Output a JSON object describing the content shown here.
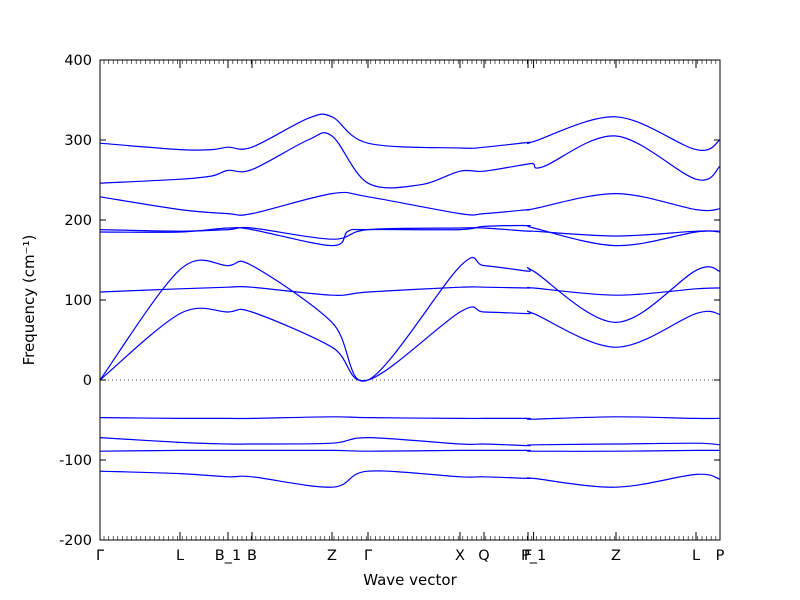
{
  "chart_data": {
    "type": "line",
    "title": "",
    "xlabel": "Wave vector",
    "ylabel": "Frequency (cm⁻¹)",
    "ylim": [
      -200,
      400
    ],
    "yticks": [
      -200,
      -100,
      0,
      100,
      200,
      300,
      400
    ],
    "line_color": "#0000ff",
    "zero_line": true,
    "x_ticks": [
      {
        "label": "Γ",
        "pos": 0.0
      },
      {
        "label": "L",
        "pos": 1.0
      },
      {
        "label": "B_1",
        "pos": 1.6
      },
      {
        "label": "B",
        "pos": 1.9
      },
      {
        "label": "Z",
        "pos": 2.9
      },
      {
        "label": "Γ",
        "pos": 3.35
      },
      {
        "label": "X",
        "pos": 4.5
      },
      {
        "label": "Q",
        "pos": 4.8
      },
      {
        "label": "F",
        "pos": 5.35
      },
      {
        "label": "P_1",
        "pos": 5.42
      },
      {
        "label": "Z",
        "pos": 6.45
      },
      {
        "label": "L",
        "pos": 7.45
      },
      {
        "label": "P",
        "pos": 7.75
      }
    ],
    "series": [
      {
        "points": [
          [
            0.0,
            296
          ],
          [
            1.0,
            288
          ],
          [
            1.4,
            288
          ],
          [
            1.6,
            291
          ],
          [
            1.9,
            291
          ],
          [
            2.6,
            327
          ],
          [
            2.9,
            329
          ],
          [
            3.35,
            296
          ],
          [
            4.5,
            290
          ],
          [
            4.8,
            291
          ],
          [
            5.35,
            297
          ],
          [
            5.42,
            298
          ],
          [
            6.45,
            329
          ],
          [
            7.45,
            288
          ],
          [
            7.75,
            300
          ]
        ]
      },
      {
        "points": [
          [
            0.0,
            246
          ],
          [
            1.0,
            251
          ],
          [
            1.4,
            255
          ],
          [
            1.6,
            262
          ],
          [
            1.9,
            263
          ],
          [
            2.6,
            300
          ],
          [
            2.9,
            305
          ],
          [
            3.35,
            246
          ],
          [
            4.0,
            244
          ],
          [
            4.5,
            261
          ],
          [
            4.8,
            261
          ],
          [
            5.35,
            270
          ],
          [
            5.42,
            270
          ],
          [
            5.55,
            267
          ],
          [
            6.45,
            305
          ],
          [
            7.45,
            251
          ],
          [
            7.75,
            267
          ]
        ]
      },
      {
        "points": [
          [
            0.0,
            229
          ],
          [
            1.0,
            213
          ],
          [
            1.6,
            208
          ],
          [
            1.9,
            208
          ],
          [
            2.9,
            233
          ],
          [
            3.35,
            229
          ],
          [
            4.5,
            208
          ],
          [
            4.8,
            208
          ],
          [
            5.35,
            213
          ],
          [
            5.42,
            214
          ],
          [
            6.45,
            233
          ],
          [
            7.45,
            213
          ],
          [
            7.75,
            214
          ]
        ]
      },
      {
        "points": [
          [
            0.0,
            188
          ],
          [
            1.0,
            186
          ],
          [
            1.6,
            188
          ],
          [
            1.9,
            190
          ],
          [
            2.9,
            176
          ],
          [
            3.35,
            188
          ],
          [
            4.5,
            190
          ],
          [
            4.8,
            190
          ],
          [
            5.35,
            186
          ],
          [
            5.42,
            186
          ],
          [
            6.45,
            180
          ],
          [
            7.45,
            186
          ],
          [
            7.75,
            186
          ]
        ]
      },
      {
        "points": [
          [
            0.0,
            185
          ],
          [
            1.0,
            185
          ],
          [
            1.6,
            190
          ],
          [
            1.9,
            188
          ],
          [
            2.9,
            168
          ],
          [
            3.1,
            186
          ],
          [
            3.35,
            188
          ],
          [
            4.5,
            188
          ],
          [
            4.8,
            192
          ],
          [
            5.35,
            193
          ],
          [
            5.42,
            190
          ],
          [
            6.45,
            168
          ],
          [
            7.45,
            185
          ],
          [
            7.75,
            185
          ]
        ]
      },
      {
        "points": [
          [
            0.0,
            110
          ],
          [
            1.0,
            114
          ],
          [
            1.6,
            116
          ],
          [
            1.9,
            116
          ],
          [
            2.9,
            106
          ],
          [
            3.35,
            110
          ],
          [
            4.5,
            116
          ],
          [
            4.8,
            116
          ],
          [
            5.35,
            115
          ],
          [
            5.42,
            115
          ],
          [
            6.45,
            106
          ],
          [
            7.45,
            114
          ],
          [
            7.75,
            115
          ]
        ]
      },
      {
        "points": [
          [
            0.0,
            0
          ],
          [
            1.0,
            138
          ],
          [
            1.6,
            143
          ],
          [
            1.9,
            143
          ],
          [
            2.9,
            72
          ],
          [
            3.35,
            0
          ],
          [
            4.5,
            142
          ],
          [
            4.8,
            143
          ],
          [
            5.35,
            136
          ],
          [
            5.42,
            136
          ],
          [
            6.45,
            72
          ],
          [
            7.45,
            137
          ],
          [
            7.75,
            136
          ]
        ]
      },
      {
        "points": [
          [
            0.0,
            0
          ],
          [
            1.0,
            83
          ],
          [
            1.6,
            85
          ],
          [
            1.9,
            85
          ],
          [
            2.9,
            41
          ],
          [
            3.35,
            0
          ],
          [
            4.5,
            85
          ],
          [
            4.8,
            85
          ],
          [
            5.35,
            83
          ],
          [
            5.42,
            83
          ],
          [
            6.45,
            41
          ],
          [
            7.45,
            83
          ],
          [
            7.75,
            82
          ]
        ]
      },
      {
        "points": [
          [
            0.0,
            -47
          ],
          [
            1.0,
            -48
          ],
          [
            1.6,
            -48
          ],
          [
            1.9,
            -48
          ],
          [
            2.9,
            -46
          ],
          [
            3.35,
            -47
          ],
          [
            4.5,
            -48
          ],
          [
            4.8,
            -48
          ],
          [
            5.35,
            -48
          ],
          [
            5.42,
            -49
          ],
          [
            6.45,
            -46
          ],
          [
            7.45,
            -48
          ],
          [
            7.75,
            -48
          ]
        ]
      },
      {
        "points": [
          [
            0.0,
            -72
          ],
          [
            1.0,
            -78
          ],
          [
            1.6,
            -80
          ],
          [
            1.9,
            -80
          ],
          [
            2.9,
            -79
          ],
          [
            3.35,
            -72
          ],
          [
            4.5,
            -80
          ],
          [
            4.8,
            -80
          ],
          [
            5.35,
            -82
          ],
          [
            5.42,
            -81
          ],
          [
            6.45,
            -80
          ],
          [
            7.45,
            -79
          ],
          [
            7.75,
            -81
          ]
        ]
      },
      {
        "points": [
          [
            0.0,
            -89
          ],
          [
            1.0,
            -88
          ],
          [
            1.6,
            -88
          ],
          [
            1.9,
            -88
          ],
          [
            2.9,
            -88
          ],
          [
            3.35,
            -89
          ],
          [
            4.5,
            -88
          ],
          [
            4.8,
            -88
          ],
          [
            5.35,
            -88
          ],
          [
            5.42,
            -89
          ],
          [
            6.45,
            -89
          ],
          [
            7.45,
            -88
          ],
          [
            7.75,
            -88
          ]
        ]
      },
      {
        "points": [
          [
            0.0,
            -114
          ],
          [
            1.0,
            -117
          ],
          [
            1.6,
            -121
          ],
          [
            1.9,
            -121
          ],
          [
            2.9,
            -134
          ],
          [
            3.35,
            -114
          ],
          [
            4.5,
            -121
          ],
          [
            4.8,
            -121
          ],
          [
            5.35,
            -123
          ],
          [
            5.42,
            -123
          ],
          [
            6.45,
            -134
          ],
          [
            7.45,
            -118
          ],
          [
            7.75,
            -124
          ]
        ]
      }
    ]
  }
}
